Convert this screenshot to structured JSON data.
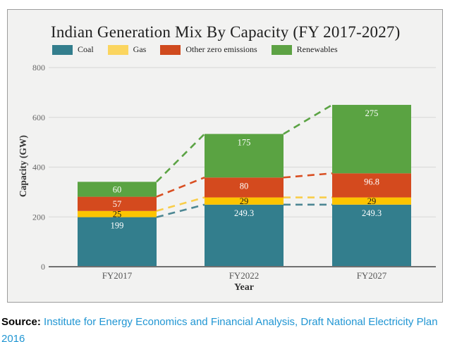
{
  "chart_data": {
    "type": "bar",
    "stacked": true,
    "title": "Indian Generation Mix By Capacity (FY 2017-2027)",
    "xlabel": "Year",
    "ylabel": "Capacity (GW)",
    "categories": [
      "FY2017",
      "FY2022",
      "FY2027"
    ],
    "series": [
      {
        "name": "Coal",
        "values": [
          199,
          249.3,
          249.3
        ],
        "color": "#337e8d",
        "dash_color": "#4d8793",
        "label_color": "#ffffff",
        "legend_color": "#337e8d"
      },
      {
        "name": "Gas",
        "values": [
          25,
          29,
          29
        ],
        "color": "#fdc400",
        "dash_color": "#f9cd49",
        "label_color": "#1a1a1a",
        "legend_color": "#fbd55f"
      },
      {
        "name": "Other zero emissions",
        "values": [
          57,
          80,
          96.8
        ],
        "color": "#d44a1e",
        "dash_color": "#d94f22",
        "label_color": "#ffffff",
        "legend_color": "#d04a1e"
      },
      {
        "name": "Renewables",
        "values": [
          60,
          175,
          275
        ],
        "color": "#5aa342",
        "dash_color": "#5ba344",
        "label_color": "#ffffff",
        "legend_color": "#5da244"
      }
    ],
    "yticks": [
      0,
      200,
      400,
      600,
      800
    ],
    "ylim": [
      0,
      800
    ],
    "grid": true,
    "legend_position": "top",
    "annotations": "dashed connector lines link cumulative segment tops between adjacent bars"
  },
  "style": {
    "panel_background": "#f2f2f1",
    "gridline_color": "#dcdcdb",
    "axis_line_color": "#707070",
    "tick_text_color": "#666666"
  },
  "source": {
    "label": "Source:",
    "link_line1": "Institute for Energy Economics and Financial Analysis, Draft National Electricity Plan",
    "link_line2": "2016",
    "link_color": "#2196d3"
  }
}
